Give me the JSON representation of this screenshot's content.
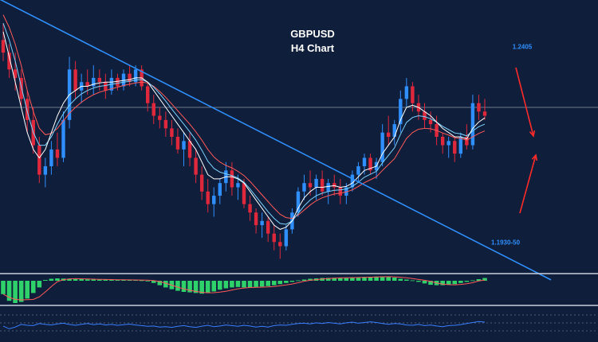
{
  "chart_data": {
    "type": "candlestick",
    "title": "GBPUSD",
    "subtitle": "H4 Chart",
    "colors": {
      "background": "#0f1e3a",
      "bull": "#2f8fff",
      "bear": "#e0283c",
      "trendline": "#2f8fff",
      "arrow": "#ff2a2a",
      "ema_white": "#ffffff",
      "ema_cyan": "#7fd4ff",
      "ema_red": "#ff5a5a",
      "hist_pos": "#2fd16a",
      "hist_neg": "#2fd16a",
      "oscillator": "#3a7fff"
    },
    "price_range": [
      1.188,
      1.25
    ],
    "current_price": 1.226,
    "candles": [
      [
        1.242,
        1.246,
        1.237,
        1.239
      ],
      [
        1.239,
        1.241,
        1.233,
        1.235
      ],
      [
        1.235,
        1.239,
        1.23,
        1.233
      ],
      [
        1.233,
        1.235,
        1.226,
        1.228
      ],
      [
        1.228,
        1.23,
        1.22,
        1.223
      ],
      [
        1.223,
        1.226,
        1.215,
        1.217
      ],
      [
        1.217,
        1.219,
        1.208,
        1.21
      ],
      [
        1.21,
        1.214,
        1.207,
        1.212
      ],
      [
        1.212,
        1.218,
        1.21,
        1.216
      ],
      [
        1.216,
        1.22,
        1.212,
        1.214
      ],
      [
        1.214,
        1.225,
        1.213,
        1.223
      ],
      [
        1.223,
        1.238,
        1.221,
        1.235
      ],
      [
        1.235,
        1.237,
        1.228,
        1.23
      ],
      [
        1.23,
        1.234,
        1.227,
        1.232
      ],
      [
        1.232,
        1.235,
        1.229,
        1.231
      ],
      [
        1.231,
        1.236,
        1.229,
        1.233
      ],
      [
        1.233,
        1.235,
        1.23,
        1.232
      ],
      [
        1.232,
        1.234,
        1.228,
        1.23
      ],
      [
        1.23,
        1.235,
        1.229,
        1.233
      ],
      [
        1.233,
        1.234,
        1.23,
        1.231
      ],
      [
        1.231,
        1.235,
        1.23,
        1.234
      ],
      [
        1.234,
        1.236,
        1.231,
        1.232
      ],
      [
        1.232,
        1.236,
        1.231,
        1.235
      ],
      [
        1.235,
        1.236,
        1.23,
        1.231
      ],
      [
        1.231,
        1.232,
        1.225,
        1.227
      ],
      [
        1.227,
        1.229,
        1.222,
        1.224
      ],
      [
        1.224,
        1.226,
        1.221,
        1.223
      ],
      [
        1.223,
        1.225,
        1.219,
        1.221
      ],
      [
        1.221,
        1.223,
        1.217,
        1.219
      ],
      [
        1.219,
        1.221,
        1.215,
        1.216
      ],
      [
        1.216,
        1.22,
        1.212,
        1.218
      ],
      [
        1.218,
        1.22,
        1.212,
        1.214
      ],
      [
        1.214,
        1.216,
        1.208,
        1.21
      ],
      [
        1.21,
        1.212,
        1.204,
        1.206
      ],
      [
        1.206,
        1.209,
        1.201,
        1.203
      ],
      [
        1.203,
        1.207,
        1.2,
        1.205
      ],
      [
        1.205,
        1.209,
        1.203,
        1.208
      ],
      [
        1.208,
        1.213,
        1.206,
        1.211
      ],
      [
        1.211,
        1.213,
        1.205,
        1.207
      ],
      [
        1.207,
        1.21,
        1.204,
        1.208
      ],
      [
        1.208,
        1.209,
        1.202,
        1.203
      ],
      [
        1.203,
        1.205,
        1.199,
        1.201
      ],
      [
        1.201,
        1.202,
        1.196,
        1.198
      ],
      [
        1.198,
        1.201,
        1.195,
        1.199
      ],
      [
        1.199,
        1.2,
        1.194,
        1.196
      ],
      [
        1.196,
        1.198,
        1.192,
        1.194
      ],
      [
        1.194,
        1.196,
        1.19,
        1.193
      ],
      [
        1.193,
        1.198,
        1.192,
        1.197
      ],
      [
        1.197,
        1.202,
        1.196,
        1.201
      ],
      [
        1.201,
        1.207,
        1.2,
        1.206
      ],
      [
        1.206,
        1.21,
        1.204,
        1.208
      ],
      [
        1.208,
        1.211,
        1.205,
        1.207
      ],
      [
        1.207,
        1.21,
        1.204,
        1.209
      ],
      [
        1.209,
        1.211,
        1.205,
        1.206
      ],
      [
        1.206,
        1.209,
        1.203,
        1.208
      ],
      [
        1.208,
        1.21,
        1.205,
        1.207
      ],
      [
        1.207,
        1.209,
        1.203,
        1.205
      ],
      [
        1.205,
        1.208,
        1.203,
        1.207
      ],
      [
        1.207,
        1.211,
        1.206,
        1.21
      ],
      [
        1.21,
        1.213,
        1.208,
        1.212
      ],
      [
        1.212,
        1.215,
        1.21,
        1.214
      ],
      [
        1.214,
        1.215,
        1.21,
        1.211
      ],
      [
        1.211,
        1.214,
        1.209,
        1.213
      ],
      [
        1.213,
        1.222,
        1.212,
        1.22
      ],
      [
        1.22,
        1.224,
        1.217,
        1.219
      ],
      [
        1.219,
        1.223,
        1.217,
        1.222
      ],
      [
        1.222,
        1.23,
        1.22,
        1.228
      ],
      [
        1.228,
        1.233,
        1.226,
        1.231
      ],
      [
        1.231,
        1.232,
        1.225,
        1.227
      ],
      [
        1.227,
        1.229,
        1.223,
        1.225
      ],
      [
        1.225,
        1.227,
        1.221,
        1.223
      ],
      [
        1.223,
        1.225,
        1.22,
        1.222
      ],
      [
        1.222,
        1.224,
        1.217,
        1.219
      ],
      [
        1.219,
        1.22,
        1.215,
        1.217
      ],
      [
        1.217,
        1.219,
        1.214,
        1.218
      ],
      [
        1.218,
        1.219,
        1.213,
        1.215
      ],
      [
        1.215,
        1.22,
        1.214,
        1.219
      ],
      [
        1.219,
        1.222,
        1.216,
        1.217
      ],
      [
        1.217,
        1.229,
        1.216,
        1.227
      ],
      [
        1.227,
        1.229,
        1.223,
        1.225
      ],
      [
        1.225,
        1.228,
        1.223,
        1.224
      ]
    ],
    "ema_white": [
      1.244,
      1.238,
      1.232,
      1.226,
      1.22,
      1.216,
      1.214,
      1.216,
      1.22,
      1.224,
      1.227,
      1.229,
      1.23,
      1.231,
      1.231,
      1.2315,
      1.2318,
      1.232,
      1.232,
      1.2322,
      1.2324,
      1.2326,
      1.233,
      1.233,
      1.232,
      1.23,
      1.228,
      1.226,
      1.224,
      1.222,
      1.22,
      1.218,
      1.216,
      1.213,
      1.21,
      1.209,
      1.209,
      1.2095,
      1.2095,
      1.209,
      1.208,
      1.206,
      1.204,
      1.202,
      1.2,
      1.198,
      1.197,
      1.1975,
      1.199,
      1.202,
      1.2045,
      1.206,
      1.207,
      1.207,
      1.2072,
      1.2074,
      1.207,
      1.2072,
      1.208,
      1.2095,
      1.211,
      1.2115,
      1.212,
      1.215,
      1.217,
      1.219,
      1.223,
      1.226,
      1.2265,
      1.226,
      1.225,
      1.224,
      1.2225,
      1.221,
      1.22,
      1.219,
      1.219,
      1.2185,
      1.221,
      1.2225,
      1.2235
    ],
    "ema_cyan": [
      1.246,
      1.242,
      1.237,
      1.231,
      1.225,
      1.22,
      1.217,
      1.217,
      1.219,
      1.222,
      1.2245,
      1.2265,
      1.228,
      1.2292,
      1.23,
      1.2306,
      1.231,
      1.2312,
      1.2315,
      1.2317,
      1.232,
      1.2322,
      1.2325,
      1.2326,
      1.232,
      1.2308,
      1.2292,
      1.2275,
      1.2256,
      1.2238,
      1.222,
      1.2202,
      1.2182,
      1.2158,
      1.2132,
      1.2115,
      1.2106,
      1.2102,
      1.2098,
      1.2092,
      1.2082,
      1.2066,
      1.2048,
      1.203,
      1.2012,
      1.1996,
      1.1984,
      1.1982,
      1.199,
      1.2008,
      1.2026,
      1.204,
      1.205,
      1.2056,
      1.206,
      1.2063,
      1.2064,
      1.2066,
      1.2072,
      1.2082,
      1.2094,
      1.2101,
      1.2108,
      1.2128,
      1.2146,
      1.2164,
      1.2196,
      1.2224,
      1.2236,
      1.224,
      1.2238,
      1.2233,
      1.2225,
      1.2215,
      1.2207,
      1.2199,
      1.2197,
      1.2192,
      1.2204,
      1.2214,
      1.222
    ],
    "ema_red": [
      1.248,
      1.245,
      1.241,
      1.236,
      1.23,
      1.225,
      1.221,
      1.2195,
      1.2198,
      1.221,
      1.2228,
      1.2246,
      1.226,
      1.2272,
      1.2282,
      1.229,
      1.2296,
      1.23,
      1.2304,
      1.2308,
      1.2312,
      1.2315,
      1.2318,
      1.232,
      1.2318,
      1.231,
      1.2298,
      1.2284,
      1.2268,
      1.2252,
      1.2236,
      1.222,
      1.2202,
      1.2182,
      1.216,
      1.2142,
      1.213,
      1.2122,
      1.2116,
      1.2108,
      1.2098,
      1.2084,
      1.2068,
      1.2052,
      1.2036,
      1.202,
      1.2006,
      1.1998,
      1.1996,
      1.2004,
      1.2016,
      1.2028,
      1.2038,
      1.2045,
      1.205,
      1.2054,
      1.2056,
      1.2059,
      1.2064,
      1.2072,
      1.2081,
      1.2088,
      1.2095,
      1.211,
      1.2124,
      1.2138,
      1.2162,
      1.2186,
      1.22,
      1.2208,
      1.221,
      1.2209,
      1.2205,
      1.2199,
      1.2194,
      1.2188,
      1.2186,
      1.2182,
      1.219,
      1.2198,
      1.2204
    ],
    "trendline": {
      "start_index": -1,
      "start_price": 1.252,
      "end_index": 91,
      "end_price": 1.185
    },
    "annotations": [
      {
        "text": "1.2405",
        "price": 1.2405,
        "color": "#2f8fff"
      },
      {
        "text": "1.1930-50",
        "price": 1.194,
        "color": "#2f8fff"
      }
    ],
    "histogram": [
      -0.6,
      -0.9,
      -1.0,
      -0.95,
      -0.8,
      -0.55,
      -0.3,
      0.1,
      0.25,
      0.3,
      0.28,
      0.26,
      0.22,
      0.2,
      0.18,
      0.16,
      0.14,
      0.14,
      0.12,
      0.1,
      0.1,
      0.1,
      0.08,
      0.05,
      0.0,
      -0.1,
      -0.2,
      -0.3,
      -0.38,
      -0.45,
      -0.5,
      -0.52,
      -0.55,
      -0.58,
      -0.55,
      -0.48,
      -0.4,
      -0.34,
      -0.3,
      -0.28,
      -0.3,
      -0.3,
      -0.28,
      -0.26,
      -0.24,
      -0.2,
      -0.15,
      -0.1,
      -0.05,
      0.05,
      0.15,
      0.25,
      0.3,
      0.35,
      0.36,
      0.38,
      0.4,
      0.4,
      0.42,
      0.44,
      0.48,
      0.5,
      0.52,
      0.55,
      0.5,
      0.4,
      0.25,
      0.15,
      0.05,
      -0.05,
      -0.12,
      -0.18,
      -0.2,
      -0.2,
      -0.18,
      -0.15,
      -0.1,
      -0.05,
      0.05,
      0.2,
      0.35
    ],
    "oscillator": [
      0.45,
      0.3,
      0.4,
      0.55,
      0.5,
      0.48,
      0.6,
      0.55,
      0.52,
      0.58,
      0.62,
      0.55,
      0.5,
      0.56,
      0.6,
      0.54,
      0.58,
      0.52,
      0.55,
      0.5,
      0.53,
      0.57,
      0.52,
      0.48,
      0.44,
      0.46,
      0.4,
      0.42,
      0.38,
      0.44,
      0.48,
      0.42,
      0.38,
      0.45,
      0.5,
      0.42,
      0.46,
      0.52,
      0.48,
      0.44,
      0.5,
      0.46,
      0.4,
      0.44,
      0.4,
      0.48,
      0.52,
      0.5,
      0.56,
      0.6,
      0.62,
      0.58,
      0.64,
      0.6,
      0.66,
      0.62,
      0.58,
      0.64,
      0.68,
      0.62,
      0.66,
      0.7,
      0.66,
      0.6,
      0.56,
      0.6,
      0.58,
      0.52,
      0.5,
      0.55,
      0.48,
      0.52,
      0.46,
      0.42,
      0.48,
      0.5,
      0.54,
      0.6,
      0.66,
      0.72,
      0.68
    ]
  }
}
